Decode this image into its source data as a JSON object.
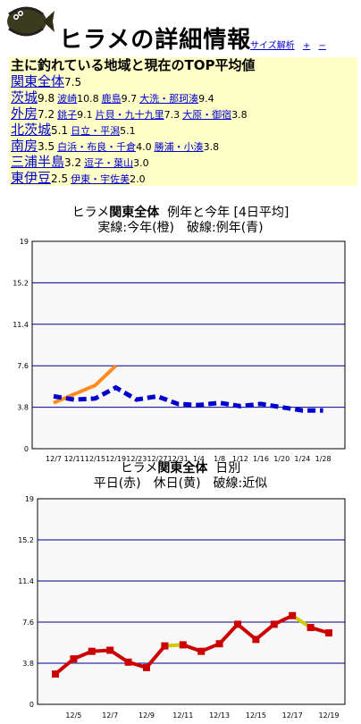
{
  "header": {
    "title": "ヒラメの詳細情報",
    "links": [
      "サイズ解析",
      "+",
      "−"
    ]
  },
  "summary": {
    "heading": "主に釣れている地域と現在のTOP平均値",
    "rows": [
      {
        "region": "関東全体",
        "value": "7.5",
        "subs": []
      },
      {
        "region": "茨城",
        "value": "9.8",
        "subs": [
          {
            "name": "波崎",
            "value": "10.8"
          },
          {
            "name": "鹿島",
            "value": "9.7"
          },
          {
            "name": "大洗・那珂湊",
            "value": "9.4"
          }
        ]
      },
      {
        "region": "外房",
        "value": "7.2",
        "subs": [
          {
            "name": "銚子",
            "value": "9.1"
          },
          {
            "name": "片貝・九十九里",
            "value": "7.3"
          },
          {
            "name": "大原・御宿",
            "value": "3.8"
          }
        ]
      },
      {
        "region": "北茨城",
        "value": "5.1",
        "subs": [
          {
            "name": "日立・平潟",
            "value": "5.1"
          }
        ]
      },
      {
        "region": "南房",
        "value": "3.5",
        "subs": [
          {
            "name": "白浜・布良・千倉",
            "value": "4.0"
          },
          {
            "name": "勝浦・小湊",
            "value": "3.8"
          }
        ]
      },
      {
        "region": "三浦半島",
        "value": "3.2",
        "subs": [
          {
            "name": "逗子・葉山",
            "value": "3.0"
          }
        ]
      },
      {
        "region": "東伊豆",
        "value": "2.5",
        "subs": [
          {
            "name": "伊東・宇佐美",
            "value": "2.0"
          }
        ]
      }
    ]
  },
  "colors": {
    "accent": "#0000ff",
    "summary_bg": "#ffffc8",
    "plot_bg": "#f8f8f8",
    "grid": "#00008b",
    "orange": "#ff8c1a",
    "blue": "#0000cc",
    "red": "#cc0000",
    "yellow": "#cccc00"
  },
  "chart_data": [
    {
      "type": "line",
      "title_prefix": "ヒラメ",
      "title_bold": "関東全体",
      "title_suffix": "例年と今年 [4日平均]",
      "subtitle": "実線:今年(橙)　破線:例年(青)",
      "ylim": [
        0,
        19
      ],
      "yticks": [
        "19",
        "15.2",
        "11.4",
        "7.6",
        "3.8",
        "0"
      ],
      "xticks": [
        "12/7",
        "12/11",
        "12/15",
        "12/19",
        "12/23",
        "12/27",
        "12/31",
        "1/4",
        "1/8",
        "1/12",
        "1/16",
        "1/20",
        "1/24",
        "1/28"
      ],
      "series": [
        {
          "style": "solid",
          "color": "orange",
          "values": [
            4.2,
            5.0,
            5.8,
            7.6
          ]
        },
        {
          "style": "dashed",
          "color": "blue",
          "values": [
            4.8,
            4.5,
            4.6,
            5.6,
            4.5,
            4.8,
            4.1,
            4.0,
            4.2,
            3.9,
            4.1,
            3.8,
            3.5,
            3.5
          ]
        }
      ]
    },
    {
      "type": "line",
      "title_prefix": "ヒラメ",
      "title_bold": "関東全体",
      "title_suffix": "日別",
      "subtitle": "平日(赤)　休日(黄)　破線:近似",
      "ylim": [
        0,
        19
      ],
      "yticks": [
        "19",
        "15.2",
        "11.4",
        "7.6",
        "3.8",
        "0"
      ],
      "xticks": [
        "12/5",
        "12/7",
        "12/9",
        "12/11",
        "12/13",
        "12/15",
        "12/17",
        "12/19"
      ],
      "points": [
        2.8,
        4.2,
        4.9,
        5.0,
        3.9,
        3.4,
        5.4,
        5.5,
        4.9,
        5.6,
        7.4,
        6.0,
        7.4,
        8.2,
        7.1,
        6.6
      ],
      "weekend": [
        6,
        13
      ]
    }
  ]
}
